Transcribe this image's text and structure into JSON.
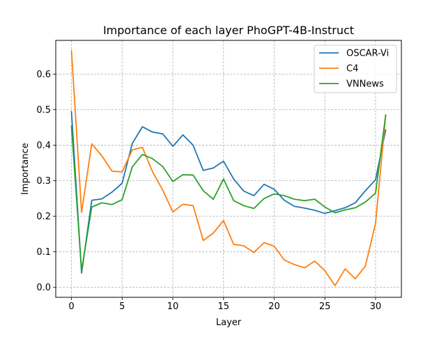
{
  "chart_data": {
    "type": "line",
    "title": "Importance of each layer PhoGPT-4B-Instruct",
    "xlabel": "Layer",
    "ylabel": "Importance",
    "xlim": [
      -1.55,
      32.55
    ],
    "ylim": [
      -0.028,
      0.695
    ],
    "xticks": [
      0,
      5,
      10,
      15,
      20,
      25,
      30
    ],
    "yticks": [
      0.0,
      0.1,
      0.2,
      0.3,
      0.4,
      0.5,
      0.6
    ],
    "ytick_labels": [
      "0.0",
      "0.1",
      "0.2",
      "0.3",
      "0.4",
      "0.5",
      "0.6"
    ],
    "grid": true,
    "grid_style": "dashed",
    "legend_position": "upper right",
    "x": [
      0,
      1,
      2,
      3,
      4,
      5,
      6,
      7,
      8,
      9,
      10,
      11,
      12,
      13,
      14,
      15,
      16,
      17,
      18,
      19,
      20,
      21,
      22,
      23,
      24,
      25,
      26,
      27,
      28,
      29,
      30,
      31
    ],
    "series": [
      {
        "name": "OSCAR-Vi",
        "color": "#1f77b4",
        "values": [
          0.494,
          0.04,
          0.245,
          0.249,
          0.268,
          0.293,
          0.405,
          0.452,
          0.437,
          0.432,
          0.397,
          0.429,
          0.4,
          0.329,
          0.336,
          0.355,
          0.305,
          0.271,
          0.258,
          0.29,
          0.276,
          0.245,
          0.228,
          0.223,
          0.217,
          0.208,
          0.216,
          0.224,
          0.238,
          0.272,
          0.303,
          0.443
        ]
      },
      {
        "name": "C4",
        "color": "#ff7f0e",
        "values": [
          0.666,
          0.211,
          0.404,
          0.37,
          0.327,
          0.325,
          0.387,
          0.394,
          0.325,
          0.274,
          0.212,
          0.234,
          0.23,
          0.132,
          0.153,
          0.188,
          0.121,
          0.117,
          0.098,
          0.126,
          0.116,
          0.077,
          0.064,
          0.055,
          0.074,
          0.047,
          0.005,
          0.052,
          0.024,
          0.06,
          0.18,
          0.485
        ]
      },
      {
        "name": "VNNews",
        "color": "#2ca02c",
        "values": [
          0.453,
          0.047,
          0.226,
          0.238,
          0.233,
          0.247,
          0.339,
          0.374,
          0.362,
          0.34,
          0.298,
          0.317,
          0.316,
          0.272,
          0.248,
          0.305,
          0.244,
          0.23,
          0.222,
          0.25,
          0.263,
          0.258,
          0.248,
          0.244,
          0.248,
          0.226,
          0.21,
          0.218,
          0.224,
          0.24,
          0.265,
          0.485
        ]
      }
    ]
  }
}
